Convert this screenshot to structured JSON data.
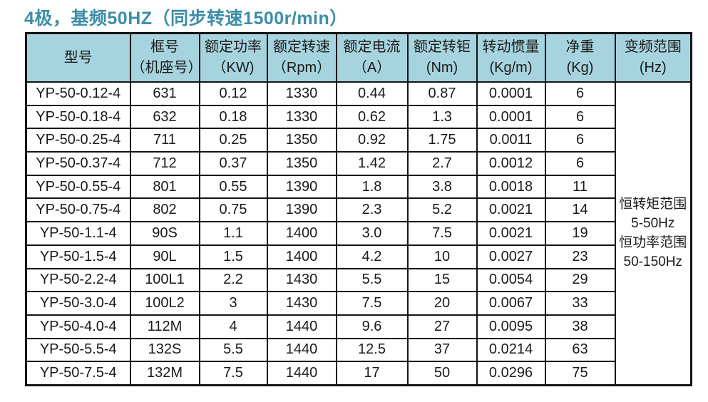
{
  "title": "4极，基频50HZ（同步转速1500r/min）",
  "colors": {
    "title_text": "#3b8da9",
    "header_bg": "#a6d4de",
    "border": "#141414",
    "cell_text": "#1a1a1a",
    "page_bg": "#ffffff"
  },
  "table": {
    "columns": [
      {
        "line1": "型号",
        "line2": ""
      },
      {
        "line1": "框号",
        "line2": "（机座号）"
      },
      {
        "line1": "额定功率",
        "line2": "（KW)"
      },
      {
        "line1": "额定转速",
        "line2": "（Rpm）"
      },
      {
        "line1": "额定电流",
        "line2": "（A）"
      },
      {
        "line1": "额定转钜",
        "line2": "(Nm)"
      },
      {
        "line1": "转动惯量",
        "line2": "(Kg/m)"
      },
      {
        "line1": "净重",
        "line2": "(Kg)"
      },
      {
        "line1": "变频范围",
        "line2": "(Hz)"
      }
    ],
    "rows": [
      [
        "YP-50-0.12-4",
        "631",
        "0.12",
        "1330",
        "0.44",
        "0.87",
        "0.0001",
        "6"
      ],
      [
        "YP-50-0.18-4",
        "632",
        "0.18",
        "1330",
        "0.62",
        "1.3",
        "0.0001",
        "6"
      ],
      [
        "YP-50-0.25-4",
        "711",
        "0.25",
        "1350",
        "0.92",
        "1.75",
        "0.0011",
        "6"
      ],
      [
        "YP-50-0.37-4",
        "712",
        "0.37",
        "1350",
        "1.42",
        "2.7",
        "0.0012",
        "6"
      ],
      [
        "YP-50-0.55-4",
        "801",
        "0.55",
        "1390",
        "1.8",
        "3.8",
        "0.0018",
        "11"
      ],
      [
        "YP-50-0.75-4",
        "802",
        "0.75",
        "1390",
        "2.3",
        "5.2",
        "0.0021",
        "14"
      ],
      [
        "YP-50-1.1-4",
        "90S",
        "1.1",
        "1400",
        "3.0",
        "7.5",
        "0.0021",
        "19"
      ],
      [
        "YP-50-1.5-4",
        "90L",
        "1.5",
        "1400",
        "4.2",
        "10",
        "0.0027",
        "23"
      ],
      [
        "YP-50-2.2-4",
        "100L1",
        "2.2",
        "1430",
        "5.5",
        "15",
        "0.0054",
        "29"
      ],
      [
        "YP-50-3.0-4",
        "100L2",
        "3",
        "1430",
        "7.5",
        "20",
        "0.0067",
        "33"
      ],
      [
        "YP-50-4.0-4",
        "112M",
        "4",
        "1440",
        "9.6",
        "27",
        "0.0095",
        "38"
      ],
      [
        "YP-50-5.5-4",
        "132S",
        "5.5",
        "1440",
        "12.5",
        "37",
        "0.0214",
        "63"
      ],
      [
        "YP-50-7.5-4",
        "132M",
        "7.5",
        "1440",
        "17",
        "50",
        "0.0296",
        "75"
      ]
    ],
    "range_lines": [
      "恒转矩范围",
      "5-50Hz",
      "恒功率范围",
      "50-150Hz"
    ]
  }
}
